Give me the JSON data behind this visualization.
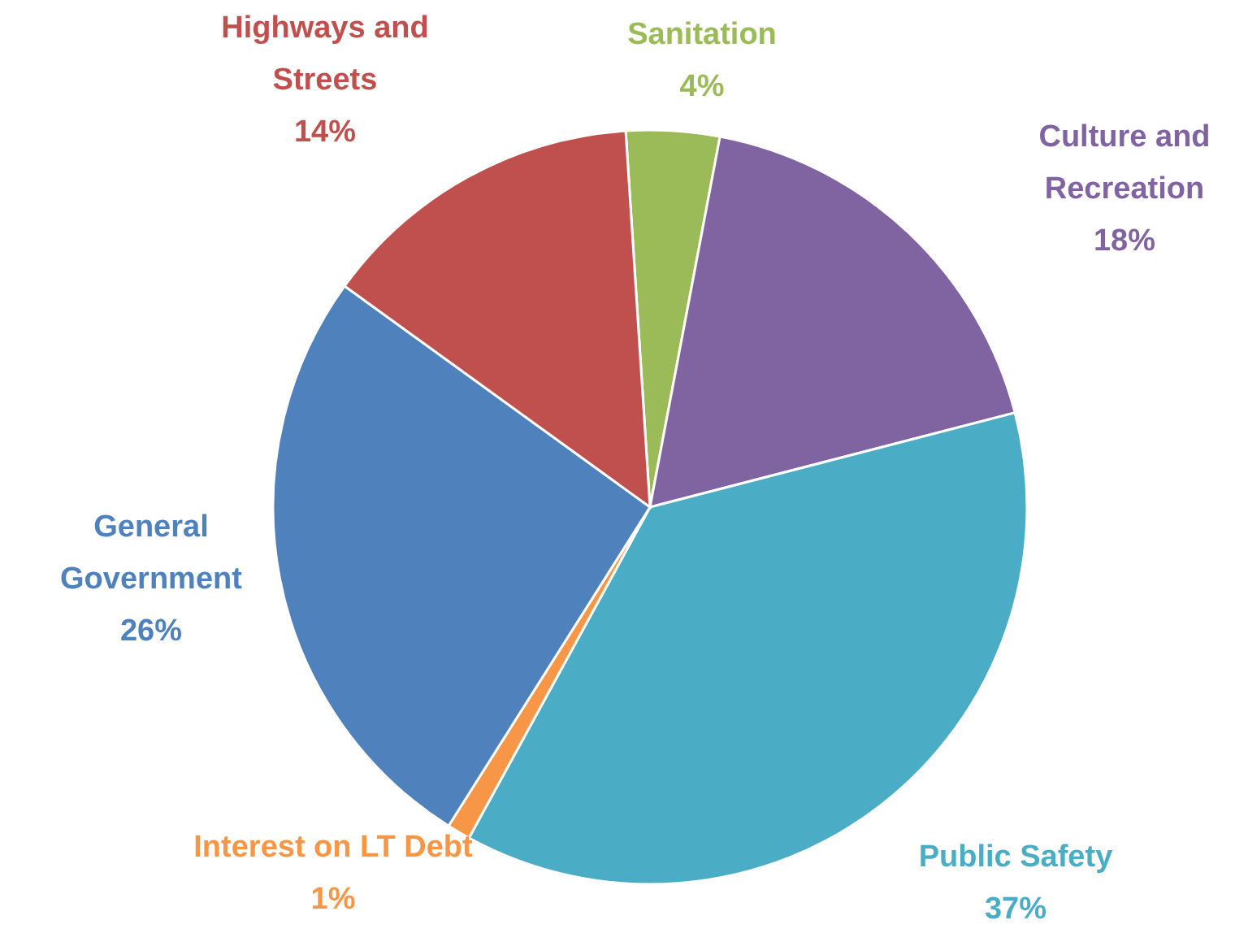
{
  "chart_data": {
    "type": "pie",
    "categories": [
      "Sanitation",
      "Culture and Recreation",
      "Public Safety",
      "Interest on LT Debt",
      "General Government",
      "Highways and Streets"
    ],
    "values": [
      4,
      18,
      37,
      1,
      26,
      14
    ],
    "colors": [
      "#9bbb59",
      "#8064a2",
      "#4bacc6",
      "#f79646",
      "#4f81bd",
      "#c0504d"
    ],
    "value_labels": [
      "4%",
      "18%",
      "37%",
      "1%",
      "26%",
      "14%"
    ]
  }
}
